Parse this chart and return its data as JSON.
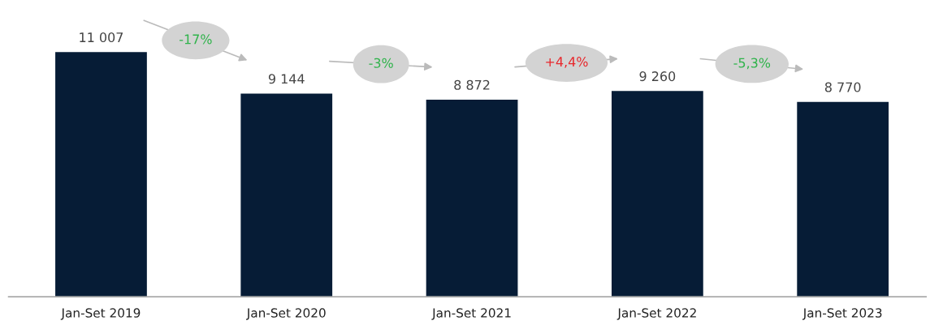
{
  "chart_data": {
    "type": "bar",
    "categories": [
      "Jan-Set 2019",
      "Jan-Set 2020",
      "Jan-Set 2021",
      "Jan-Set 2022",
      "Jan-Set 2023"
    ],
    "values": [
      11007,
      9144,
      8872,
      9260,
      8770
    ],
    "value_labels": [
      "11 007",
      "9 144",
      "8 872",
      "9 260",
      "8 770"
    ],
    "color": "#061c36",
    "annotations": [
      "-17%",
      "-3%",
      "+4,4%",
      "-5,3%"
    ],
    "tick_labels": "x",
    "grid": false,
    "legend": false
  }
}
